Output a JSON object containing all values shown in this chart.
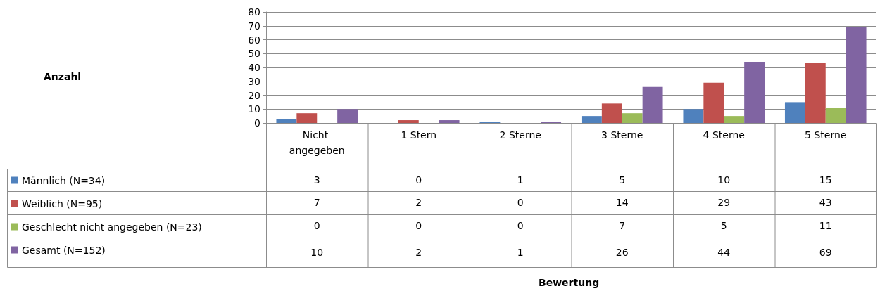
{
  "chart_data": {
    "type": "bar",
    "annotations": [
      "Anzahl",
      "Bewertung"
    ],
    "categories": [
      "Nicht angegeben",
      "1 Stern",
      "2 Sterne",
      "3 Sterne",
      "4 Sterne",
      "5 Sterne"
    ],
    "series": [
      {
        "name": "Männlich (N=34)",
        "color": "#4f81bd",
        "values": [
          3,
          0,
          1,
          5,
          10,
          15
        ]
      },
      {
        "name": "Weiblich (N=95)",
        "color": "#c0504d",
        "values": [
          7,
          2,
          0,
          14,
          29,
          43
        ]
      },
      {
        "name": "Geschlecht nicht angegeben (N=23)",
        "color": "#9bbb59",
        "values": [
          0,
          0,
          0,
          7,
          5,
          11
        ]
      },
      {
        "name": "Gesamt (N=152)",
        "color": "#8064a2",
        "values": [
          10,
          2,
          1,
          26,
          44,
          69
        ]
      }
    ],
    "ylim": [
      0,
      80
    ],
    "yticks": [
      0,
      10,
      20,
      30,
      40,
      50,
      60,
      70,
      80
    ],
    "grid": "y",
    "legend": "bottom left",
    "data_labels": true
  }
}
